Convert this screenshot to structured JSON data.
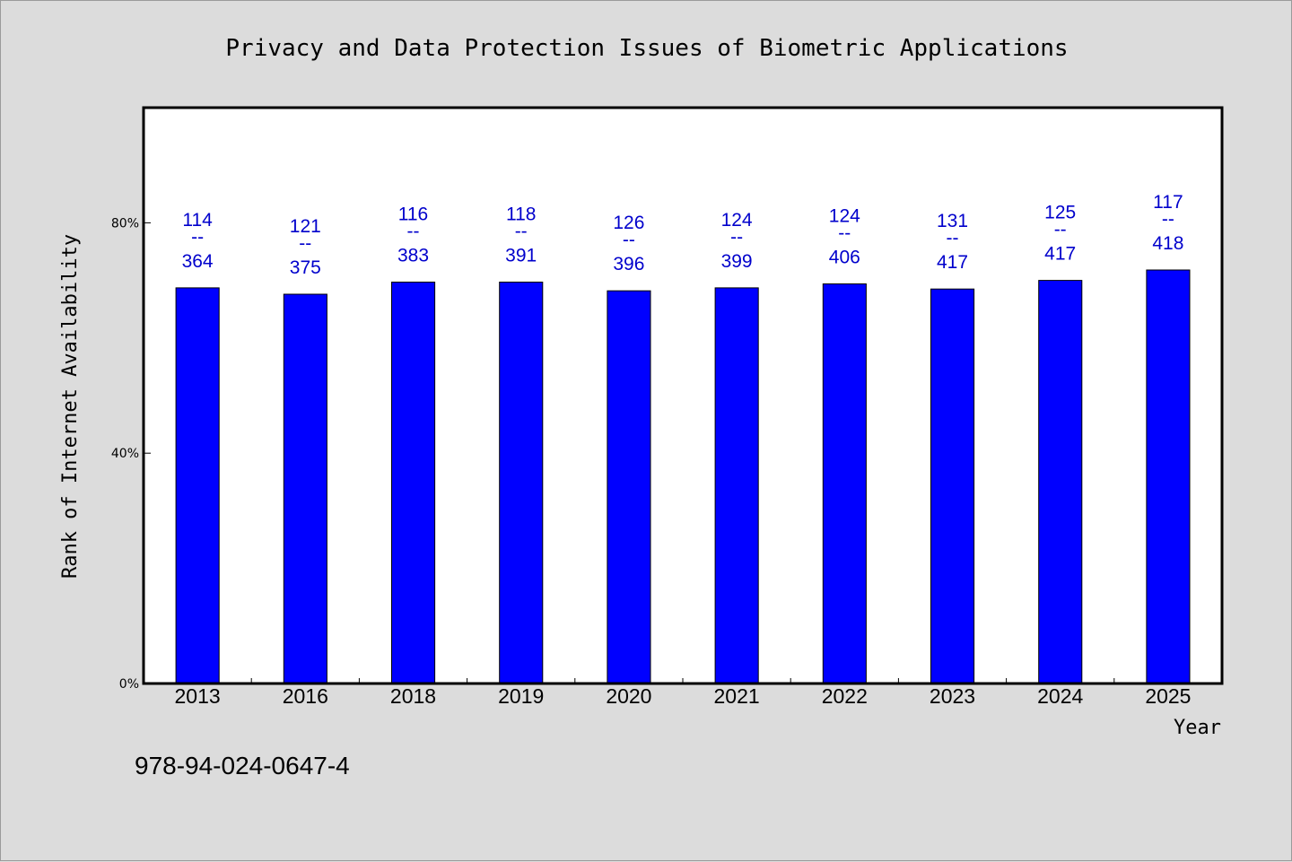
{
  "chart_data": {
    "type": "bar",
    "title": "Privacy and Data Protection Issues of Biometric Applications",
    "xlabel": "Year",
    "ylabel": "Rank of Internet Availability",
    "categories": [
      "2013",
      "2016",
      "2018",
      "2019",
      "2020",
      "2021",
      "2022",
      "2023",
      "2024",
      "2025"
    ],
    "values": [
      68.7,
      67.6,
      69.7,
      69.7,
      68.2,
      68.7,
      69.4,
      68.5,
      70.0,
      71.8
    ],
    "value_format": "percent",
    "ylim": [
      0,
      100
    ],
    "yticks": [
      {
        "value": 0,
        "label": "0%"
      },
      {
        "value": 40,
        "label": "40%"
      },
      {
        "value": 80,
        "label": "80%"
      }
    ],
    "annotations": [
      {
        "top": "114",
        "sep": "--",
        "bottom": "364"
      },
      {
        "top": "121",
        "sep": "--",
        "bottom": "375"
      },
      {
        "top": "116",
        "sep": "--",
        "bottom": "383"
      },
      {
        "top": "118",
        "sep": "--",
        "bottom": "391"
      },
      {
        "top": "126",
        "sep": "--",
        "bottom": "396"
      },
      {
        "top": "124",
        "sep": "--",
        "bottom": "399"
      },
      {
        "top": "124",
        "sep": "--",
        "bottom": "406"
      },
      {
        "top": "131",
        "sep": "--",
        "bottom": "417"
      },
      {
        "top": "125",
        "sep": "--",
        "bottom": "417"
      },
      {
        "top": "117",
        "sep": "--",
        "bottom": "418"
      }
    ],
    "bar_color": "#0000ff",
    "label_color": "#0000cc",
    "grid": false,
    "legend": "none"
  },
  "footnote": "978-94-024-0647-4"
}
